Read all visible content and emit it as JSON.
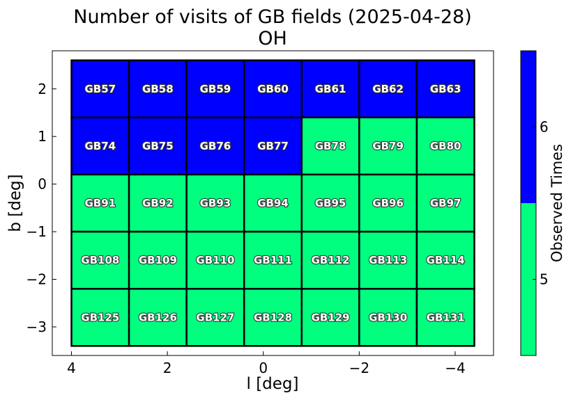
{
  "chart_data": {
    "type": "heatmap",
    "title": "Number of visits of GB fields (2025-04-28)",
    "subtitle": "OH",
    "xlabel": "l [deg]",
    "ylabel": "b [deg]",
    "xlim": [
      4.4,
      -4.8
    ],
    "ylim": [
      -3.6,
      2.8
    ],
    "xticks": [
      4,
      2,
      0,
      -2,
      -4
    ],
    "yticks": [
      2,
      1,
      0,
      -1,
      -2,
      -3
    ],
    "x_tick_labels": [
      "4",
      "2",
      "0",
      "−2",
      "−4"
    ],
    "y_tick_labels": [
      "2",
      "1",
      "0",
      "−1",
      "−2",
      "−3"
    ],
    "cell_width_deg": 1.2,
    "cell_height_deg": 1.2,
    "fields": [
      {
        "name": "GB57",
        "l": 3.4,
        "b": 2.0,
        "visits": 6
      },
      {
        "name": "GB58",
        "l": 2.2,
        "b": 2.0,
        "visits": 6
      },
      {
        "name": "GB59",
        "l": 1.0,
        "b": 2.0,
        "visits": 6
      },
      {
        "name": "GB60",
        "l": -0.2,
        "b": 2.0,
        "visits": 6
      },
      {
        "name": "GB61",
        "l": -1.4,
        "b": 2.0,
        "visits": 6
      },
      {
        "name": "GB62",
        "l": -2.6,
        "b": 2.0,
        "visits": 6
      },
      {
        "name": "GB63",
        "l": -3.8,
        "b": 2.0,
        "visits": 6
      },
      {
        "name": "GB74",
        "l": 3.4,
        "b": 0.8,
        "visits": 6
      },
      {
        "name": "GB75",
        "l": 2.2,
        "b": 0.8,
        "visits": 6
      },
      {
        "name": "GB76",
        "l": 1.0,
        "b": 0.8,
        "visits": 6
      },
      {
        "name": "GB77",
        "l": -0.2,
        "b": 0.8,
        "visits": 6
      },
      {
        "name": "GB78",
        "l": -1.4,
        "b": 0.8,
        "visits": 5
      },
      {
        "name": "GB79",
        "l": -2.6,
        "b": 0.8,
        "visits": 5
      },
      {
        "name": "GB80",
        "l": -3.8,
        "b": 0.8,
        "visits": 5
      },
      {
        "name": "GB91",
        "l": 3.4,
        "b": -0.4,
        "visits": 5
      },
      {
        "name": "GB92",
        "l": 2.2,
        "b": -0.4,
        "visits": 5
      },
      {
        "name": "GB93",
        "l": 1.0,
        "b": -0.4,
        "visits": 5
      },
      {
        "name": "GB94",
        "l": -0.2,
        "b": -0.4,
        "visits": 5
      },
      {
        "name": "GB95",
        "l": -1.4,
        "b": -0.4,
        "visits": 5
      },
      {
        "name": "GB96",
        "l": -2.6,
        "b": -0.4,
        "visits": 5
      },
      {
        "name": "GB97",
        "l": -3.8,
        "b": -0.4,
        "visits": 5
      },
      {
        "name": "GB108",
        "l": 3.4,
        "b": -1.6,
        "visits": 5
      },
      {
        "name": "GB109",
        "l": 2.2,
        "b": -1.6,
        "visits": 5
      },
      {
        "name": "GB110",
        "l": 1.0,
        "b": -1.6,
        "visits": 5
      },
      {
        "name": "GB111",
        "l": -0.2,
        "b": -1.6,
        "visits": 5
      },
      {
        "name": "GB112",
        "l": -1.4,
        "b": -1.6,
        "visits": 5
      },
      {
        "name": "GB113",
        "l": -2.6,
        "b": -1.6,
        "visits": 5
      },
      {
        "name": "GB114",
        "l": -3.8,
        "b": -1.6,
        "visits": 5
      },
      {
        "name": "GB125",
        "l": 3.4,
        "b": -2.8,
        "visits": 5
      },
      {
        "name": "GB126",
        "l": 2.2,
        "b": -2.8,
        "visits": 5
      },
      {
        "name": "GB127",
        "l": 1.0,
        "b": -2.8,
        "visits": 5
      },
      {
        "name": "GB128",
        "l": -0.2,
        "b": -2.8,
        "visits": 5
      },
      {
        "name": "GB129",
        "l": -1.4,
        "b": -2.8,
        "visits": 5
      },
      {
        "name": "GB130",
        "l": -2.6,
        "b": -2.8,
        "visits": 5
      },
      {
        "name": "GB131",
        "l": -3.8,
        "b": -2.8,
        "visits": 5
      }
    ],
    "colorbar": {
      "label": "Observed Times",
      "range": [
        4.5,
        6.5
      ],
      "ticks": [
        5,
        6
      ],
      "tick_labels": [
        "5",
        "6"
      ],
      "levels": [
        {
          "value": 5,
          "color": "#00ff7f"
        },
        {
          "value": 6,
          "color": "#0000ff"
        }
      ]
    },
    "grid": false
  }
}
